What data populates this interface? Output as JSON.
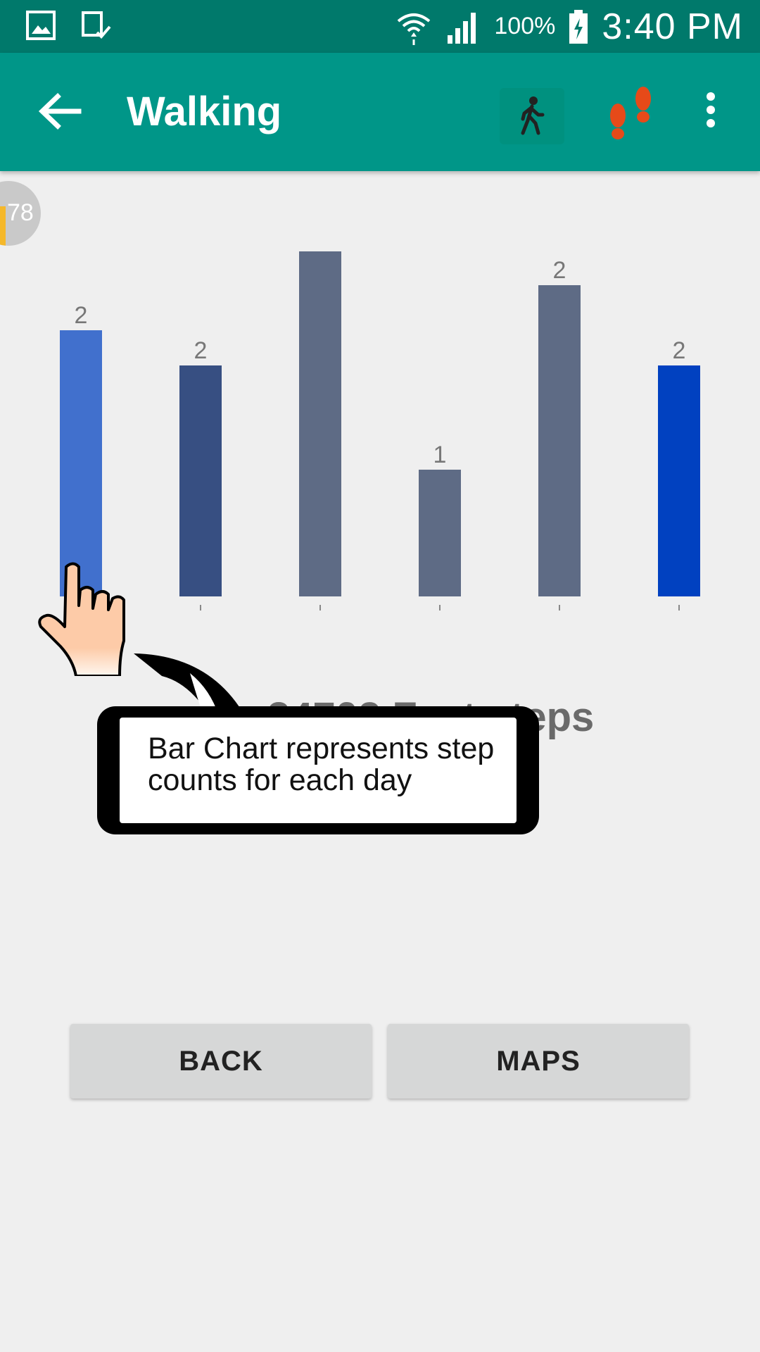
{
  "status_bar": {
    "battery": "100%",
    "time": "3:40 PM"
  },
  "app_bar": {
    "title": "Walking",
    "icons": [
      "back-arrow-icon",
      "walking-person-icon",
      "footprints-icon",
      "more-vert-icon"
    ]
  },
  "badge": {
    "value": "78"
  },
  "chart_data": {
    "type": "bar",
    "values": [
      2,
      2,
      3,
      1,
      2,
      2
    ],
    "labels": [
      "2",
      "2",
      "",
      "1",
      "2",
      "2"
    ],
    "colors": [
      "#4170cd",
      "#374f82",
      "#5e6b85",
      "#5e6b85",
      "#5e6b85",
      "#0141c0"
    ],
    "title": "",
    "xlabel": "",
    "ylabel": ""
  },
  "summary": {
    "steps_text": "34702 Feet steps"
  },
  "tutorial": {
    "message": "Bar Chart represents step counts for each day"
  },
  "buttons": {
    "back": "BACK",
    "maps": "MAPS"
  }
}
